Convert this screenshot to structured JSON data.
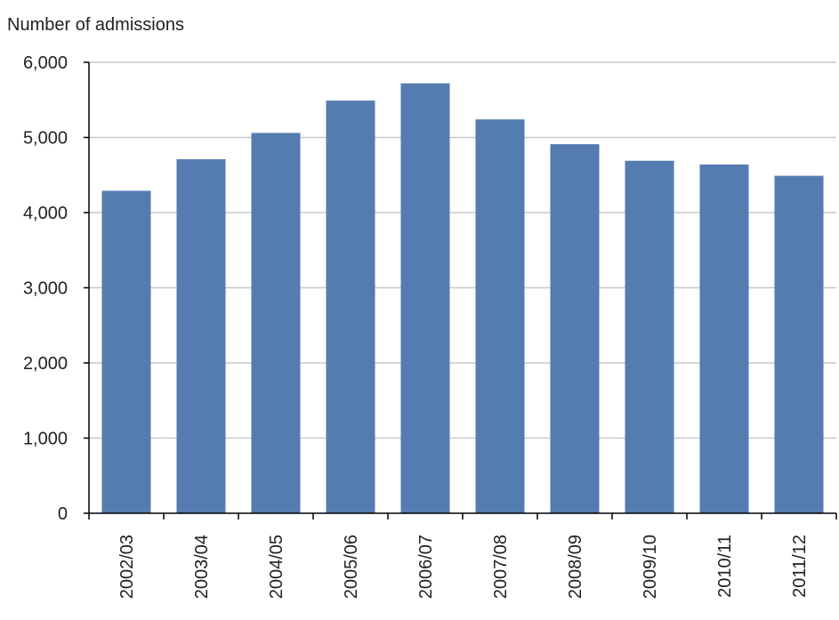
{
  "chart_data": {
    "type": "bar",
    "title": "",
    "xlabel": "",
    "ylabel": "Number of admissions",
    "categories": [
      "2002/03",
      "2003/04",
      "2004/05",
      "2005/06",
      "2006/07",
      "2007/08",
      "2008/09",
      "2009/10",
      "2010/11",
      "2011/12"
    ],
    "values": [
      4290,
      4710,
      5060,
      5490,
      5720,
      5240,
      4910,
      4690,
      4640,
      4490
    ],
    "y_ticks": [
      "0",
      "1,000",
      "2,000",
      "3,000",
      "4,000",
      "5,000",
      "6,000"
    ],
    "ylim": [
      0,
      6000
    ],
    "grid": true,
    "legend": "none",
    "colors": {
      "bar": "#557cb0",
      "grid": "#c8c8c8",
      "axis": "#000000",
      "text": "#222222"
    }
  }
}
